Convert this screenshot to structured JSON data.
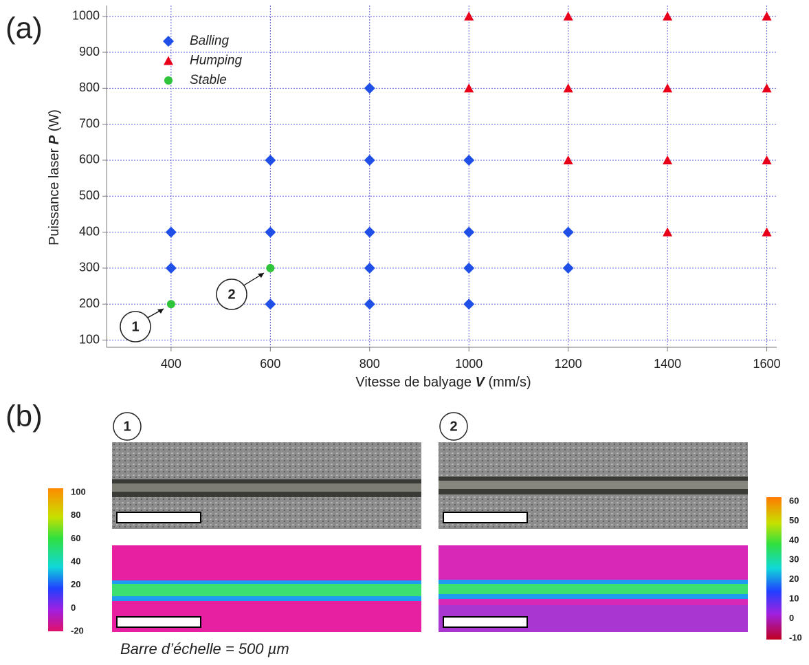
{
  "chart_data": {
    "type": "scatter",
    "x_label": [
      "Vitesse de balyage ",
      "V",
      " (mm/s)"
    ],
    "y_label": [
      "Puissance laser ",
      "P",
      " (W)"
    ],
    "xlim": [
      270,
      1620
    ],
    "xticks": [
      400,
      600,
      800,
      1000,
      1200,
      1400,
      1600
    ],
    "ylim": [
      80,
      1030
    ],
    "yticks": [
      100,
      200,
      300,
      400,
      500,
      600,
      700,
      800,
      900,
      1000
    ],
    "grid": true,
    "legend": "upper-left",
    "series": [
      {
        "name": "Balling",
        "color": "#1f4fe6",
        "marker": "diamond",
        "x": [
          400,
          400,
          600,
          600,
          600,
          800,
          800,
          800,
          800,
          800,
          1000,
          1000,
          1000,
          1000,
          1200,
          1200
        ],
        "values": [
          300,
          400,
          200,
          400,
          600,
          200,
          300,
          400,
          600,
          800,
          200,
          300,
          400,
          600,
          300,
          400
        ]
      },
      {
        "name": "Humping",
        "color": "#e8001a",
        "marker": "triangle",
        "x": [
          1000,
          1000,
          1200,
          1200,
          1200,
          1400,
          1400,
          1400,
          1400,
          1600,
          1600,
          1600,
          1600
        ],
        "values": [
          800,
          1000,
          600,
          800,
          1000,
          400,
          600,
          800,
          1000,
          400,
          600,
          800,
          1000
        ]
      },
      {
        "name": "Stable",
        "color": "#2fc43a",
        "marker": "circle",
        "x": [
          400,
          600
        ],
        "values": [
          200,
          300
        ]
      }
    ],
    "annotations": [
      "1",
      "2"
    ]
  },
  "panel_labels": [
    "(a)",
    "(b)"
  ],
  "micrographs": [
    {
      "label": "1"
    },
    {
      "label": "2"
    }
  ],
  "colorbars": [
    {
      "ticks": [
        100,
        80,
        60,
        40,
        20,
        0,
        -20
      ]
    },
    {
      "ticks": [
        60,
        50,
        40,
        30,
        20,
        10,
        0,
        -10
      ]
    }
  ],
  "caption": "Barre d’échelle = 500 µm"
}
